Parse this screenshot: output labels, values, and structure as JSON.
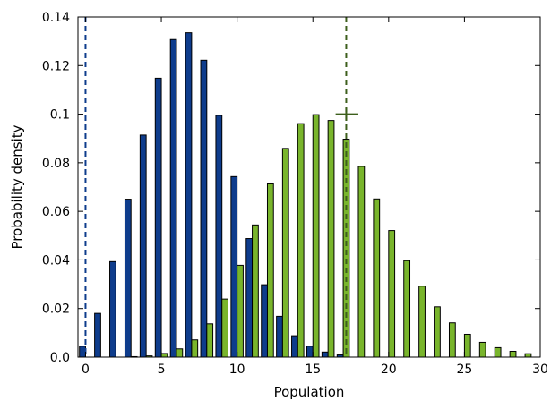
{
  "chart_data": {
    "type": "bar",
    "title": "",
    "xlabel": "Population",
    "ylabel": "Probability density",
    "xlim": [
      -0.5,
      30
    ],
    "ylim": [
      0,
      0.14
    ],
    "xticks": [
      0,
      5,
      10,
      15,
      20,
      25,
      30
    ],
    "yticks": [
      0.0,
      0.02,
      0.04,
      0.06,
      0.08,
      0.1,
      0.12,
      0.14
    ],
    "ytick_labels": [
      "0.0",
      "0.02",
      "0.04",
      "0.06",
      "0.08",
      "0.1",
      "0.12",
      "0.14"
    ],
    "grid": false,
    "legend": "none",
    "series": [
      {
        "color": "#0e3c8c",
        "x": [
          0,
          1,
          2,
          3,
          4,
          5,
          6,
          7,
          8,
          9,
          10,
          11,
          12,
          13,
          14,
          15,
          16,
          17
        ],
        "values": [
          0.0045,
          0.018,
          0.0393,
          0.065,
          0.0914,
          0.1148,
          0.1307,
          0.1335,
          0.1222,
          0.0995,
          0.0743,
          0.0488,
          0.0298,
          0.0168,
          0.0088,
          0.0045,
          0.0021,
          0.0009
        ]
      },
      {
        "color": "#79b52c",
        "x": [
          3,
          4,
          5,
          6,
          7,
          8,
          9,
          10,
          11,
          12,
          13,
          14,
          15,
          16,
          17,
          18,
          19,
          20,
          21,
          22,
          23,
          24,
          25,
          26,
          27,
          28,
          29
        ],
        "values": [
          0.0002,
          0.0005,
          0.0015,
          0.0034,
          0.0071,
          0.0137,
          0.0239,
          0.0378,
          0.0544,
          0.0713,
          0.0859,
          0.0961,
          0.0998,
          0.0974,
          0.0897,
          0.0785,
          0.0651,
          0.0521,
          0.0397,
          0.0292,
          0.0207,
          0.0141,
          0.0094,
          0.0061,
          0.0039,
          0.0024,
          0.0014
        ]
      }
    ],
    "reference_lines": [
      {
        "x": 0,
        "color": "#0e3c8c",
        "style": "dashed"
      },
      {
        "x": 17.2,
        "color": "#3d5f1c",
        "style": "dashed",
        "error_bar": {
          "y": 0.1,
          "xmin": 16.5,
          "xmax": 18.0
        }
      }
    ]
  }
}
